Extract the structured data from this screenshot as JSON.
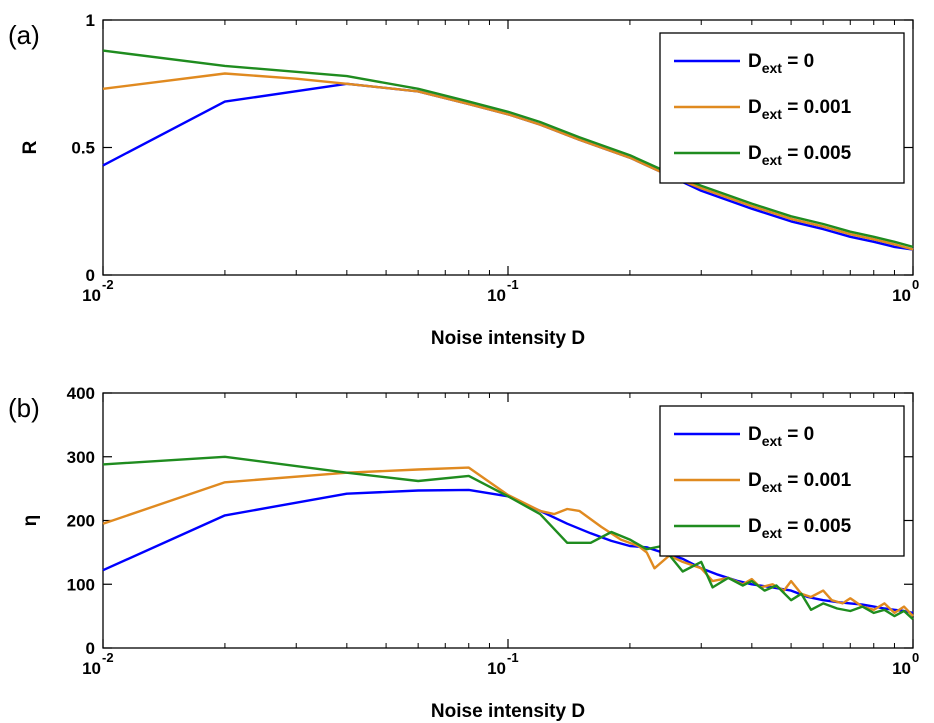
{
  "chart_data": [
    {
      "type": "line",
      "panel_label": "(a)",
      "xlabel": "Noise intensity D",
      "ylabel": "R",
      "xscale": "log",
      "xlim": [
        0.01,
        1
      ],
      "ylim": [
        0,
        1
      ],
      "x_ticks": [
        {
          "base": "10",
          "exp": "-2"
        },
        {
          "base": "10",
          "exp": "-1"
        },
        {
          "base": "10",
          "exp": "0"
        }
      ],
      "y_ticks": [
        "0",
        "0.5",
        "1"
      ],
      "grid": false,
      "legend_position": "top-right",
      "series": [
        {
          "name": {
            "main": "D",
            "sub": "ext",
            "rest": " = 0"
          },
          "color": "#0000ff",
          "points": [
            [
              0.01,
              0.43
            ],
            [
              0.02,
              0.68
            ],
            [
              0.04,
              0.75
            ],
            [
              0.06,
              0.72
            ],
            [
              0.08,
              0.67
            ],
            [
              0.1,
              0.63
            ],
            [
              0.12,
              0.59
            ],
            [
              0.15,
              0.53
            ],
            [
              0.2,
              0.46
            ],
            [
              0.25,
              0.39
            ],
            [
              0.3,
              0.33
            ],
            [
              0.4,
              0.26
            ],
            [
              0.5,
              0.21
            ],
            [
              0.6,
              0.18
            ],
            [
              0.7,
              0.15
            ],
            [
              0.8,
              0.13
            ],
            [
              0.9,
              0.11
            ],
            [
              1.0,
              0.1
            ]
          ]
        },
        {
          "name": {
            "main": "D",
            "sub": "ext",
            "rest": " = 0.001"
          },
          "color": "#e08a20",
          "points": [
            [
              0.01,
              0.73
            ],
            [
              0.02,
              0.79
            ],
            [
              0.03,
              0.77
            ],
            [
              0.04,
              0.75
            ],
            [
              0.06,
              0.72
            ],
            [
              0.08,
              0.67
            ],
            [
              0.1,
              0.63
            ],
            [
              0.12,
              0.59
            ],
            [
              0.15,
              0.53
            ],
            [
              0.2,
              0.46
            ],
            [
              0.25,
              0.39
            ],
            [
              0.3,
              0.34
            ],
            [
              0.4,
              0.27
            ],
            [
              0.5,
              0.22
            ],
            [
              0.6,
              0.19
            ],
            [
              0.7,
              0.16
            ],
            [
              0.8,
              0.14
            ],
            [
              0.9,
              0.12
            ],
            [
              1.0,
              0.1
            ]
          ]
        },
        {
          "name": {
            "main": "D",
            "sub": "ext",
            "rest": " = 0.005"
          },
          "color": "#1f8c1f",
          "points": [
            [
              0.01,
              0.88
            ],
            [
              0.02,
              0.82
            ],
            [
              0.04,
              0.78
            ],
            [
              0.06,
              0.73
            ],
            [
              0.08,
              0.68
            ],
            [
              0.1,
              0.64
            ],
            [
              0.12,
              0.6
            ],
            [
              0.15,
              0.54
            ],
            [
              0.2,
              0.47
            ],
            [
              0.25,
              0.4
            ],
            [
              0.3,
              0.35
            ],
            [
              0.4,
              0.28
            ],
            [
              0.5,
              0.23
            ],
            [
              0.6,
              0.2
            ],
            [
              0.7,
              0.17
            ],
            [
              0.8,
              0.15
            ],
            [
              0.9,
              0.13
            ],
            [
              1.0,
              0.11
            ]
          ]
        }
      ]
    },
    {
      "type": "line",
      "panel_label": "(b)",
      "xlabel": "Noise intensity D",
      "ylabel": "η",
      "xscale": "log",
      "xlim": [
        0.01,
        1
      ],
      "ylim": [
        0,
        400
      ],
      "x_ticks": [
        {
          "base": "10",
          "exp": "-2"
        },
        {
          "base": "10",
          "exp": "-1"
        },
        {
          "base": "10",
          "exp": "0"
        }
      ],
      "y_ticks": [
        "0",
        "100",
        "200",
        "300",
        "400"
      ],
      "grid": false,
      "legend_position": "top-right",
      "series": [
        {
          "name": {
            "main": "D",
            "sub": "ext",
            "rest": " = 0"
          },
          "color": "#0000ff",
          "points": [
            [
              0.01,
              122
            ],
            [
              0.02,
              208
            ],
            [
              0.04,
              242
            ],
            [
              0.06,
              247
            ],
            [
              0.08,
              248
            ],
            [
              0.1,
              238
            ],
            [
              0.12,
              215
            ],
            [
              0.14,
              195
            ],
            [
              0.16,
              180
            ],
            [
              0.18,
              168
            ],
            [
              0.2,
              160
            ],
            [
              0.22,
              158
            ],
            [
              0.24,
              150
            ],
            [
              0.27,
              140
            ],
            [
              0.3,
              125
            ],
            [
              0.33,
              115
            ],
            [
              0.37,
              105
            ],
            [
              0.4,
              100
            ],
            [
              0.45,
              95
            ],
            [
              0.5,
              90
            ],
            [
              0.55,
              80
            ],
            [
              0.6,
              75
            ],
            [
              0.65,
              72
            ],
            [
              0.7,
              70
            ],
            [
              0.75,
              68
            ],
            [
              0.8,
              65
            ],
            [
              0.85,
              62
            ],
            [
              0.9,
              60
            ],
            [
              0.95,
              58
            ],
            [
              1.0,
              55
            ]
          ]
        },
        {
          "name": {
            "main": "D",
            "sub": "ext",
            "rest": " = 0.001"
          },
          "color": "#e08a20",
          "points": [
            [
              0.01,
              195
            ],
            [
              0.02,
              260
            ],
            [
              0.04,
              275
            ],
            [
              0.06,
              280
            ],
            [
              0.08,
              283
            ],
            [
              0.1,
              240
            ],
            [
              0.12,
              215
            ],
            [
              0.13,
              210
            ],
            [
              0.14,
              218
            ],
            [
              0.15,
              215
            ],
            [
              0.17,
              190
            ],
            [
              0.19,
              170
            ],
            [
              0.21,
              160
            ],
            [
              0.22,
              150
            ],
            [
              0.23,
              125
            ],
            [
              0.25,
              145
            ],
            [
              0.27,
              135
            ],
            [
              0.3,
              125
            ],
            [
              0.32,
              105
            ],
            [
              0.35,
              110
            ],
            [
              0.38,
              100
            ],
            [
              0.4,
              108
            ],
            [
              0.42,
              95
            ],
            [
              0.45,
              100
            ],
            [
              0.48,
              90
            ],
            [
              0.5,
              105
            ],
            [
              0.53,
              85
            ],
            [
              0.56,
              80
            ],
            [
              0.6,
              90
            ],
            [
              0.63,
              75
            ],
            [
              0.67,
              70
            ],
            [
              0.7,
              78
            ],
            [
              0.75,
              65
            ],
            [
              0.8,
              60
            ],
            [
              0.85,
              70
            ],
            [
              0.9,
              55
            ],
            [
              0.95,
              65
            ],
            [
              1.0,
              50
            ]
          ]
        },
        {
          "name": {
            "main": "D",
            "sub": "ext",
            "rest": " = 0.005"
          },
          "color": "#1f8c1f",
          "points": [
            [
              0.01,
              288
            ],
            [
              0.02,
              300
            ],
            [
              0.04,
              275
            ],
            [
              0.06,
              262
            ],
            [
              0.08,
              270
            ],
            [
              0.1,
              238
            ],
            [
              0.12,
              210
            ],
            [
              0.14,
              165
            ],
            [
              0.16,
              165
            ],
            [
              0.18,
              182
            ],
            [
              0.2,
              170
            ],
            [
              0.22,
              155
            ],
            [
              0.24,
              160
            ],
            [
              0.27,
              120
            ],
            [
              0.3,
              135
            ],
            [
              0.32,
              95
            ],
            [
              0.35,
              110
            ],
            [
              0.38,
              98
            ],
            [
              0.4,
              105
            ],
            [
              0.43,
              90
            ],
            [
              0.46,
              98
            ],
            [
              0.5,
              75
            ],
            [
              0.53,
              85
            ],
            [
              0.56,
              60
            ],
            [
              0.6,
              70
            ],
            [
              0.65,
              62
            ],
            [
              0.7,
              58
            ],
            [
              0.75,
              65
            ],
            [
              0.8,
              55
            ],
            [
              0.85,
              60
            ],
            [
              0.9,
              50
            ],
            [
              0.95,
              58
            ],
            [
              1.0,
              45
            ]
          ]
        }
      ]
    }
  ]
}
